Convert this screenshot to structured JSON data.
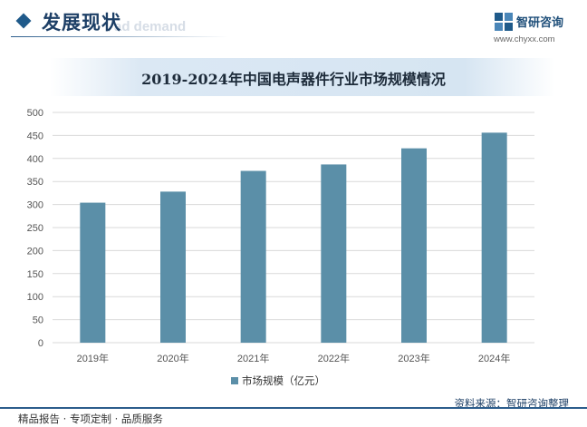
{
  "header": {
    "title": "发展现状",
    "subtitle": "ad demand",
    "brand": "智研咨询",
    "url": "www.chyxx.com"
  },
  "footer": {
    "left": "精品报告 · 专项定制 · 品质服务",
    "right": "资料来源：智研咨询整理"
  },
  "colors": {
    "bar": "#5b8fa8",
    "accent": "#1f5a8a"
  },
  "chart_data": {
    "type": "bar",
    "title": "2019-2024年中国电声器件行业市场规模情况",
    "categories": [
      "2019年",
      "2020年",
      "2021年",
      "2022年",
      "2023年",
      "2024年"
    ],
    "series": [
      {
        "name": "市场规模（亿元）",
        "values": [
          304,
          328,
          373,
          387,
          422,
          456
        ]
      }
    ],
    "ylim": [
      0,
      500
    ],
    "yticks": [
      0,
      50,
      100,
      150,
      200,
      250,
      300,
      350,
      400,
      450,
      500
    ],
    "grid": true,
    "legend": "bottom-center"
  }
}
